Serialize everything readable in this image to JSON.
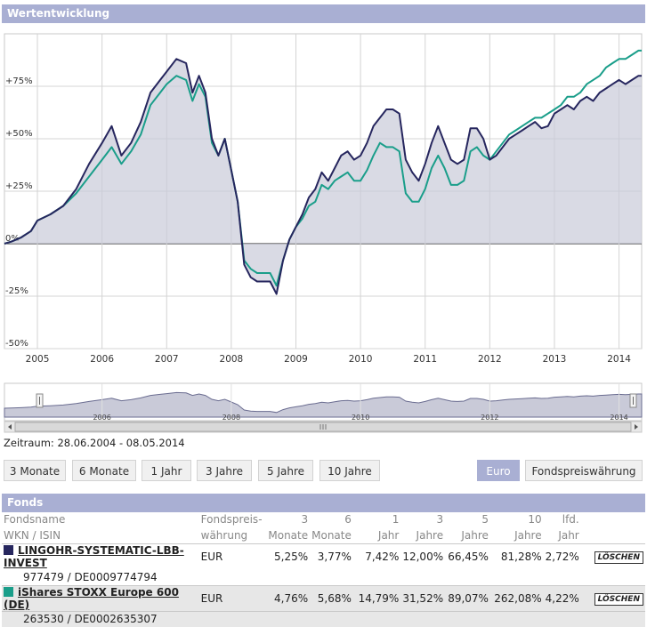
{
  "header": {
    "title": "Wertentwicklung"
  },
  "chart_data": {
    "type": "line",
    "title": "Wertentwicklung",
    "ylim": [
      -50,
      100
    ],
    "xlim": [
      2004.49,
      2014.35
    ],
    "yticks": [
      -50,
      -25,
      0,
      25,
      50,
      75
    ],
    "ytick_labels": [
      "-50%",
      "-25%",
      "0%",
      "+25%",
      "+50%",
      "+75%"
    ],
    "xticks": [
      2005,
      2006,
      2007,
      2008,
      2009,
      2010,
      2011,
      2012,
      2013,
      2014
    ],
    "xtick_labels": [
      "2005",
      "2006",
      "2007",
      "2008",
      "2009",
      "2010",
      "2011",
      "2012",
      "2013",
      "2014"
    ],
    "series": [
      {
        "name": "LINGOHR-SYSTEMATIC-LBB-INVEST",
        "color": "#26265e",
        "x": [
          2004.49,
          2004.6,
          2004.75,
          2004.9,
          2005.0,
          2005.2,
          2005.4,
          2005.6,
          2005.8,
          2006.0,
          2006.15,
          2006.3,
          2006.45,
          2006.6,
          2006.75,
          2006.9,
          2007.0,
          2007.15,
          2007.3,
          2007.4,
          2007.5,
          2007.6,
          2007.7,
          2007.8,
          2007.9,
          2008.0,
          2008.1,
          2008.2,
          2008.3,
          2008.4,
          2008.5,
          2008.6,
          2008.7,
          2008.8,
          2008.9,
          2009.0,
          2009.1,
          2009.2,
          2009.3,
          2009.4,
          2009.5,
          2009.6,
          2009.7,
          2009.8,
          2009.9,
          2010.0,
          2010.1,
          2010.2,
          2010.3,
          2010.4,
          2010.5,
          2010.6,
          2010.7,
          2010.8,
          2010.9,
          2011.0,
          2011.1,
          2011.2,
          2011.3,
          2011.4,
          2011.5,
          2011.6,
          2011.7,
          2011.8,
          2011.9,
          2012.0,
          2012.1,
          2012.2,
          2012.3,
          2012.4,
          2012.5,
          2012.6,
          2012.7,
          2012.8,
          2012.9,
          2013.0,
          2013.1,
          2013.2,
          2013.3,
          2013.4,
          2013.5,
          2013.6,
          2013.7,
          2013.8,
          2013.9,
          2014.0,
          2014.1,
          2014.2,
          2014.3,
          2014.35
        ],
        "values": [
          0,
          1,
          3,
          6,
          11,
          14,
          18,
          26,
          38,
          48,
          56,
          42,
          48,
          58,
          72,
          78,
          82,
          88,
          86,
          72,
          80,
          72,
          50,
          42,
          50,
          35,
          20,
          -10,
          -16,
          -18,
          -18,
          -18,
          -24,
          -8,
          2,
          8,
          14,
          22,
          26,
          34,
          30,
          36,
          42,
          44,
          40,
          42,
          48,
          56,
          60,
          64,
          64,
          62,
          40,
          34,
          30,
          38,
          48,
          56,
          48,
          40,
          38,
          40,
          55,
          55,
          50,
          40,
          42,
          46,
          50,
          52,
          54,
          56,
          58,
          55,
          56,
          62,
          64,
          66,
          64,
          68,
          70,
          68,
          72,
          74,
          76,
          78,
          76,
          78,
          80,
          80
        ],
        "note": "approximate shape"
      },
      {
        "name": "iShares STOXX Europe 600 (DE)",
        "color": "#1a9e8a",
        "x": [
          2004.49,
          2004.6,
          2004.75,
          2004.9,
          2005.0,
          2005.2,
          2005.4,
          2005.6,
          2005.8,
          2006.0,
          2006.15,
          2006.3,
          2006.45,
          2006.6,
          2006.75,
          2006.9,
          2007.0,
          2007.15,
          2007.3,
          2007.4,
          2007.5,
          2007.6,
          2007.7,
          2007.8,
          2007.9,
          2008.0,
          2008.1,
          2008.2,
          2008.3,
          2008.4,
          2008.5,
          2008.6,
          2008.7,
          2008.8,
          2008.9,
          2009.0,
          2009.1,
          2009.2,
          2009.3,
          2009.4,
          2009.5,
          2009.6,
          2009.7,
          2009.8,
          2009.9,
          2010.0,
          2010.1,
          2010.2,
          2010.3,
          2010.4,
          2010.5,
          2010.6,
          2010.7,
          2010.8,
          2010.9,
          2011.0,
          2011.1,
          2011.2,
          2011.3,
          2011.4,
          2011.5,
          2011.6,
          2011.7,
          2011.8,
          2011.9,
          2012.0,
          2012.1,
          2012.2,
          2012.3,
          2012.4,
          2012.5,
          2012.6,
          2012.7,
          2012.8,
          2012.9,
          2013.0,
          2013.1,
          2013.2,
          2013.3,
          2013.4,
          2013.5,
          2013.6,
          2013.7,
          2013.8,
          2013.9,
          2014.0,
          2014.1,
          2014.2,
          2014.3,
          2014.35
        ],
        "values": [
          0,
          1,
          3,
          6,
          11,
          14,
          18,
          24,
          32,
          40,
          46,
          38,
          44,
          52,
          66,
          72,
          76,
          80,
          78,
          68,
          76,
          70,
          48,
          42,
          50,
          35,
          20,
          -8,
          -12,
          -14,
          -14,
          -14,
          -20,
          -8,
          2,
          8,
          12,
          18,
          20,
          28,
          26,
          30,
          32,
          34,
          30,
          30,
          35,
          42,
          48,
          46,
          46,
          44,
          24,
          20,
          20,
          26,
          36,
          42,
          36,
          28,
          28,
          30,
          44,
          46,
          42,
          40,
          44,
          48,
          52,
          54,
          56,
          58,
          60,
          60,
          62,
          64,
          66,
          70,
          70,
          72,
          76,
          78,
          80,
          84,
          86,
          88,
          88,
          90,
          92,
          92
        ],
        "note": "approximate shape"
      }
    ],
    "navigator": {
      "xtick_labels": [
        "2006",
        "2008",
        "2010",
        "2012",
        "2014"
      ],
      "xticks": [
        2006,
        2008,
        2010,
        2012,
        2014
      ]
    }
  },
  "zeitraum": {
    "label": "Zeitraum: 28.06.2004 - 08.05.2014"
  },
  "range_buttons": [
    "3 Monate",
    "6 Monate",
    "1 Jahr",
    "3 Jahre",
    "5 Jahre",
    "10 Jahre"
  ],
  "currency_buttons": {
    "euro": "Euro",
    "fund": "Fondspreiswährung",
    "active": "euro"
  },
  "fonds": {
    "title": "Fonds",
    "headers": {
      "name1": "Fondsname",
      "name2": "WKN / ISIN",
      "cur1": "Fondspreis-",
      "cur2": "währung",
      "m3a": "3",
      "m3b": "Monate",
      "m6a": "6",
      "m6b": "Monate",
      "y1a": "1",
      "y1b": "Jahr",
      "y3a": "3",
      "y3b": "Jahre",
      "y5a": "5",
      "y5b": "Jahre",
      "y10a": "10",
      "y10b": "Jahre",
      "lfda": "lfd.",
      "lfdb": "Jahr"
    },
    "rows": [
      {
        "name": "LINGOHR-SYSTEMATIC-LBB-INVEST",
        "id": "977479 / DE0009774794",
        "currency": "EUR",
        "m3": "5,25%",
        "m6": "3,77%",
        "y1": "7,42%",
        "y3": "12,00%",
        "y5": "66,45%",
        "y10": "81,28%",
        "lfd": "2,72%",
        "delete": "LÖSCHEN",
        "color": "#26265e"
      },
      {
        "name": "iShares STOXX Europe 600 (DE)",
        "id": "263530 / DE0002635307",
        "currency": "EUR",
        "m3": "4,76%",
        "m6": "5,68%",
        "y1": "14,79%",
        "y3": "31,52%",
        "y5": "89,07%",
        "y10": "262,08%",
        "lfd": "4,22%",
        "delete": "LÖSCHEN",
        "color": "#1a9e8a"
      }
    ]
  }
}
